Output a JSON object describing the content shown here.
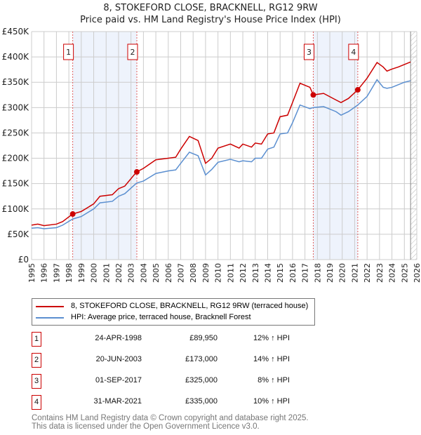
{
  "chart_data": {
    "type": "line",
    "title": "8, STOKEFORD CLOSE, BRACKNELL, RG12 9RW",
    "subtitle": "Price paid vs. HM Land Registry's House Price Index (HPI)",
    "xlim": [
      1995,
      2026
    ],
    "ylim": [
      0,
      450000
    ],
    "y_ticks": [
      0,
      50000,
      100000,
      150000,
      200000,
      250000,
      300000,
      350000,
      400000,
      450000
    ],
    "y_tick_labels": [
      "£0",
      "£50K",
      "£100K",
      "£150K",
      "£200K",
      "£250K",
      "£300K",
      "£350K",
      "£400K",
      "£450K"
    ],
    "x_ticks": [
      1995,
      1996,
      1997,
      1998,
      1999,
      2000,
      2001,
      2002,
      2003,
      2004,
      2005,
      2006,
      2007,
      2008,
      2009,
      2010,
      2011,
      2012,
      2013,
      2014,
      2015,
      2016,
      2017,
      2018,
      2019,
      2020,
      2021,
      2022,
      2023,
      2024,
      2025,
      2026
    ],
    "grid": true,
    "series": [
      {
        "name": "8, STOKEFORD CLOSE, BRACKNELL, RG12 9RW (terraced house)",
        "color": "#cc0000",
        "x": [
          1995,
          1995.5,
          1996,
          1997,
          1997.5,
          1998.3,
          1999,
          2000,
          2000.5,
          2001.5,
          2002,
          2002.5,
          2003.45,
          2004,
          2005,
          2006,
          2006.6,
          2007,
          2007.7,
          2008.4,
          2009,
          2009.5,
          2010,
          2011,
          2011.7,
          2012,
          2012.7,
          2013,
          2013.5,
          2014,
          2014.5,
          2015,
          2015.6,
          2016,
          2016.6,
          2017.4,
          2017.67,
          2018.5,
          2019.5,
          2019.9,
          2020.5,
          2021.25,
          2022,
          2022.8,
          2023.3,
          2023.6,
          2024,
          2024.5,
          2025,
          2025.5
        ],
        "y": [
          68000,
          70000,
          67000,
          70000,
          75000,
          89950,
          95000,
          110000,
          125000,
          128000,
          140000,
          145000,
          173000,
          180000,
          197000,
          200000,
          202000,
          218000,
          243000,
          235000,
          190000,
          200000,
          220000,
          228000,
          220000,
          228000,
          222000,
          230000,
          228000,
          248000,
          250000,
          282000,
          285000,
          310000,
          348000,
          340000,
          325000,
          328000,
          315000,
          310000,
          318000,
          335000,
          358000,
          389000,
          380000,
          372000,
          376000,
          380000,
          385000,
          390000
        ]
      },
      {
        "name": "HPI: Average price, terraced house, Bracknell Forest",
        "color": "#5b8fd0",
        "x": [
          1995,
          1995.5,
          1996,
          1997,
          1997.5,
          1998.3,
          1999,
          2000,
          2000.5,
          2001.5,
          2002,
          2002.5,
          2003.45,
          2004,
          2005,
          2006,
          2006.6,
          2007,
          2007.7,
          2008.4,
          2009,
          2009.5,
          2010,
          2011,
          2011.7,
          2012,
          2012.7,
          2013,
          2013.5,
          2014,
          2014.5,
          2015,
          2015.6,
          2016,
          2016.6,
          2017.4,
          2017.67,
          2018.5,
          2019.5,
          2019.9,
          2020.5,
          2021.25,
          2022,
          2022.8,
          2023.3,
          2023.6,
          2024,
          2024.5,
          2025,
          2025.5
        ],
        "y": [
          62000,
          63000,
          61000,
          63000,
          68000,
          80000,
          85000,
          100000,
          112000,
          115000,
          125000,
          130000,
          151000,
          155000,
          170000,
          175000,
          177000,
          190000,
          212000,
          205000,
          167000,
          178000,
          192000,
          198000,
          193000,
          195000,
          193000,
          200000,
          200000,
          218000,
          222000,
          248000,
          250000,
          270000,
          305000,
          298000,
          300000,
          302000,
          292000,
          285000,
          292000,
          305000,
          322000,
          355000,
          340000,
          338000,
          340000,
          345000,
          350000,
          353000
        ]
      }
    ],
    "sales": [
      {
        "label": "1",
        "x": 1998.31,
        "y": 89950,
        "date": "24-APR-1998",
        "price": "£89,950",
        "hpi": "12% ↑ HPI"
      },
      {
        "label": "2",
        "x": 2003.47,
        "y": 173000,
        "date": "20-JUN-2003",
        "price": "£173,000",
        "hpi": "14% ↑ HPI"
      },
      {
        "label": "3",
        "x": 2017.67,
        "y": 325000,
        "date": "01-SEP-2017",
        "price": "£325,000",
        "hpi": "8% ↑ HPI"
      },
      {
        "label": "4",
        "x": 2021.25,
        "y": 335000,
        "date": "31-MAR-2021",
        "price": "£335,000",
        "hpi": "10% ↑ HPI"
      }
    ],
    "shaded_ranges": [
      [
        1998.31,
        2003.47
      ],
      [
        2017.67,
        2021.25
      ]
    ],
    "forecast_from": 2025.5,
    "legend_placement": "below"
  },
  "footer": [
    "Contains HM Land Registry data © Crown copyright and database right 2025.",
    "This data is licensed under the Open Government Licence v3.0."
  ]
}
